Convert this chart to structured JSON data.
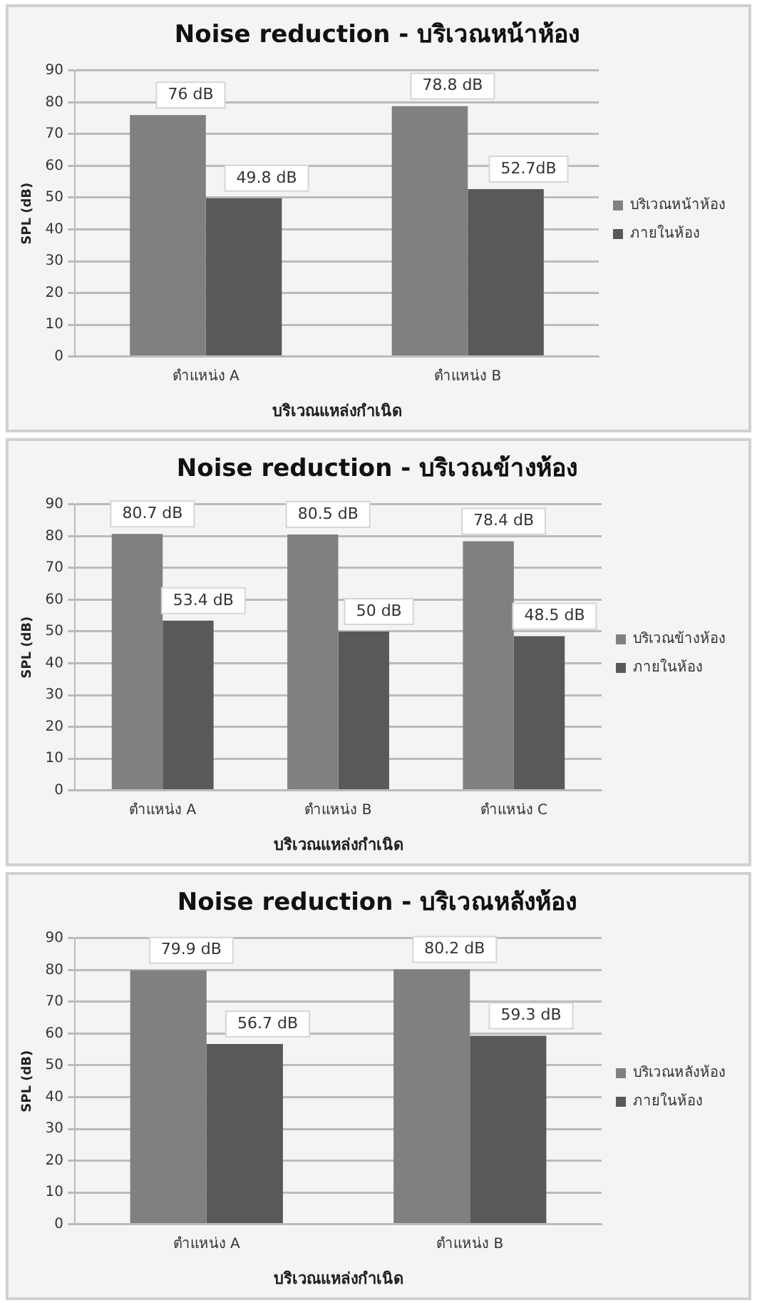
{
  "chart_data": [
    {
      "type": "bar",
      "title": "Noise reduction - บริเวณหน้าห้อง",
      "xlabel": "บริเวณแหล่งกำเนิด",
      "ylabel": "SPL (dB)",
      "categories": [
        "ตำแหน่ง A",
        "ตำแหน่ง B"
      ],
      "series": [
        {
          "name": "บริเวณหน้าห้อง",
          "color": "#808080",
          "values": [
            76,
            78.8
          ],
          "value_labels": [
            "76 dB",
            "78.8 dB"
          ]
        },
        {
          "name": "ภายในห้อง",
          "color": "#595959",
          "values": [
            49.8,
            52.7
          ],
          "value_labels": [
            "49.8 dB",
            "52.7dB"
          ]
        }
      ],
      "ylim": [
        0,
        90
      ],
      "yticks": [
        0,
        10,
        20,
        30,
        40,
        50,
        60,
        70,
        80,
        90
      ],
      "grid": "y",
      "legend": "right"
    },
    {
      "type": "bar",
      "title": "Noise reduction - บริเวณข้างห้อง",
      "xlabel": "บริเวณแหล่งกำเนิด",
      "ylabel": "SPL (dB)",
      "categories": [
        "ตำแหน่ง A",
        "ตำแหน่ง B",
        "ตำแหน่ง C"
      ],
      "series": [
        {
          "name": "บริเวณข้างห้อง",
          "color": "#808080",
          "values": [
            80.7,
            80.5,
            78.4
          ],
          "value_labels": [
            "80.7 dB",
            "80.5 dB",
            "78.4 dB"
          ]
        },
        {
          "name": "ภายในห้อง",
          "color": "#595959",
          "values": [
            53.4,
            50,
            48.5
          ],
          "value_labels": [
            "53.4 dB",
            "50 dB",
            "48.5 dB"
          ]
        }
      ],
      "ylim": [
        0,
        90
      ],
      "yticks": [
        0,
        10,
        20,
        30,
        40,
        50,
        60,
        70,
        80,
        90
      ],
      "grid": "y",
      "legend": "right"
    },
    {
      "type": "bar",
      "title": "Noise reduction - บริเวณหลังห้อง",
      "xlabel": "บริเวณแหล่งกำเนิด",
      "ylabel": "SPL (dB)",
      "categories": [
        "ตำแหน่ง A",
        "ตำแหน่ง B"
      ],
      "series": [
        {
          "name": "บริเวณหลังห้อง",
          "color": "#808080",
          "values": [
            79.9,
            80.2
          ],
          "value_labels": [
            "79.9 dB",
            "80.2 dB"
          ]
        },
        {
          "name": "ภายในห้อง",
          "color": "#595959",
          "values": [
            56.7,
            59.3
          ],
          "value_labels": [
            "56.7 dB",
            "59.3 dB"
          ]
        }
      ],
      "ylim": [
        0,
        90
      ],
      "yticks": [
        0,
        10,
        20,
        30,
        40,
        50,
        60,
        70,
        80,
        90
      ],
      "grid": "y",
      "legend": "right"
    }
  ]
}
